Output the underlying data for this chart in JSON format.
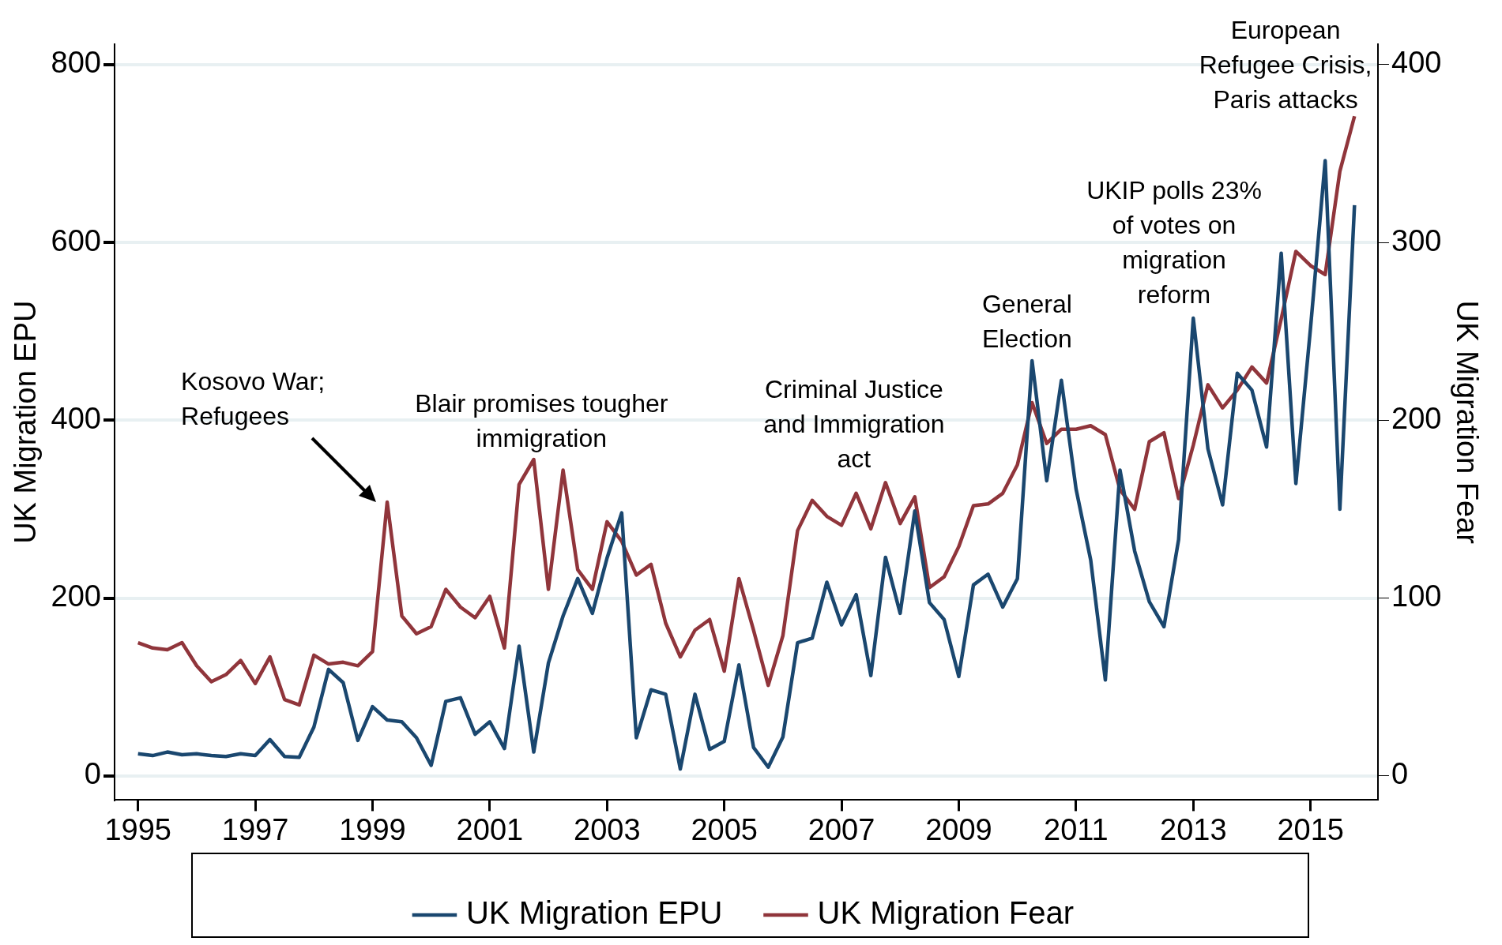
{
  "chart_data": {
    "type": "line",
    "ylabel": "UK Migration EPU",
    "y2label": "UK Migration Fear",
    "x": [
      1995,
      1995.25,
      1995.5,
      1995.75,
      1996,
      1996.25,
      1996.5,
      1996.75,
      1997,
      1997.25,
      1997.5,
      1997.75,
      1998,
      1998.25,
      1998.5,
      1998.75,
      1999,
      1999.25,
      1999.5,
      1999.75,
      2000,
      2000.25,
      2000.5,
      2000.75,
      2001,
      2001.25,
      2001.5,
      2001.75,
      2002,
      2002.25,
      2002.5,
      2002.75,
      2003,
      2003.25,
      2003.5,
      2003.75,
      2004,
      2004.25,
      2004.5,
      2004.75,
      2005,
      2005.25,
      2005.5,
      2005.75,
      2006,
      2006.25,
      2006.5,
      2006.75,
      2007,
      2007.25,
      2007.5,
      2007.75,
      2008,
      2008.25,
      2008.5,
      2008.75,
      2009,
      2009.25,
      2009.5,
      2009.75,
      2010,
      2010.25,
      2010.5,
      2010.75,
      2011,
      2011.25,
      2011.5,
      2011.75,
      2012,
      2012.25,
      2012.5,
      2012.75,
      2013,
      2013.25,
      2013.5,
      2013.75,
      2014,
      2014.25,
      2014.5,
      2014.75,
      2015,
      2015.25,
      2015.5,
      2015.75
    ],
    "series": [
      {
        "name": "UK Migration EPU",
        "color": "#1a476f",
        "values": [
          25,
          23,
          27,
          24,
          25,
          23,
          22,
          25,
          23,
          41,
          22,
          21,
          55,
          120,
          105,
          40,
          78,
          63,
          61,
          43,
          12,
          84,
          88,
          47,
          61,
          31,
          146,
          27,
          127,
          180,
          222,
          183,
          245,
          296,
          43,
          97,
          92,
          8,
          92,
          30,
          39,
          125,
          32,
          10,
          44,
          150,
          155,
          218,
          170,
          204,
          113,
          246,
          183,
          298,
          195,
          176,
          112,
          215,
          227,
          190,
          222,
          467,
          332,
          445,
          323,
          243,
          108,
          344,
          253,
          196,
          168,
          266,
          515,
          368,
          305,
          453,
          434,
          370,
          588,
          329,
          504,
          692,
          300,
          642
        ]
      },
      {
        "name": "UK Migration Fear",
        "color": "#90353b",
        "axis": "y2",
        "values": [
          75,
          72,
          71,
          75,
          62,
          53,
          57,
          65,
          52,
          67,
          43,
          40,
          68,
          63,
          64,
          62,
          70,
          154,
          90,
          80,
          84,
          105,
          95,
          89,
          101,
          72,
          164,
          178,
          105,
          172,
          116,
          105,
          143,
          132,
          113,
          119,
          86,
          67,
          82,
          88,
          59,
          111,
          82,
          51,
          79,
          138,
          155,
          146,
          141,
          159,
          139,
          165,
          142,
          157,
          106,
          112,
          129,
          152,
          153,
          159,
          175,
          210,
          187,
          195,
          195,
          197,
          192,
          161,
          150,
          188,
          193,
          156,
          186,
          220,
          207,
          217,
          230,
          221,
          257,
          295,
          287,
          282,
          340,
          371
        ]
      }
    ],
    "xlim": [
      1994.6,
      2016.15
    ],
    "xticks": [
      1995,
      1997,
      1999,
      2001,
      2003,
      2005,
      2007,
      2009,
      2011,
      2013,
      2015
    ],
    "ylim": [
      -27,
      823
    ],
    "yticks": [
      0,
      200,
      400,
      600,
      800
    ],
    "y2lim": [
      -13.5,
      411.5
    ],
    "y2ticks": [
      0,
      100,
      200,
      300,
      400
    ],
    "grid": "y",
    "legend": "bottom",
    "line_style": "solid",
    "marker": "none",
    "annotations": [
      "Kosovo War;\nRefugees",
      "Blair promises tougher\nimmigration",
      "Criminal Justice\nand Immigration\nact",
      "General\nElection",
      "UKIP polls 23%\nof votes on\nmigration\nreform",
      "European\nRefugee Crisis,\nParis attacks"
    ]
  }
}
